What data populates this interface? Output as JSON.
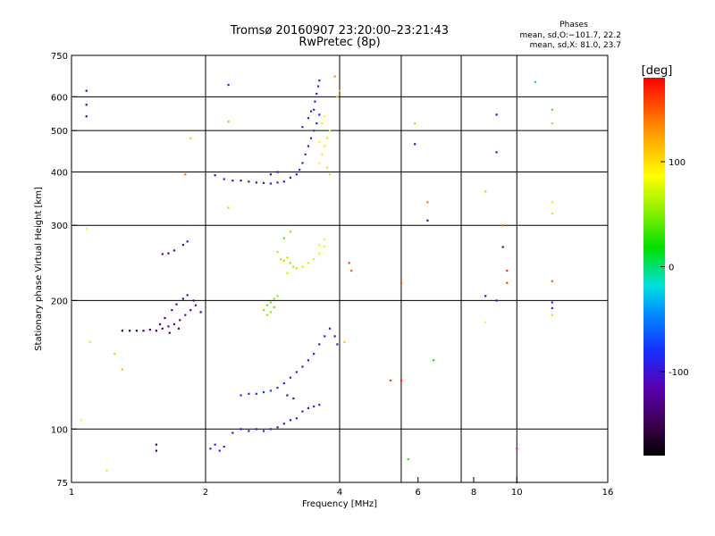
{
  "chart_data": {
    "type": "scatter",
    "title": "Tromsø 20160907 23:20:00–23:21:43",
    "subtitle": "RwPretec (8p)",
    "stats_title": "Phases",
    "stats_o": "mean, sd,O:−101.7, 22.2",
    "stats_x": "mean, sd,X:  81.0, 23.7",
    "xlabel": "Frequency [MHz]",
    "ylabel": "Stationary phase Virtual Height [km]",
    "xscale": "log",
    "yscale": "log",
    "xlim": [
      1,
      16
    ],
    "ylim": [
      75,
      750
    ],
    "xticks": [
      {
        "value": 1,
        "label": "1"
      },
      {
        "value": 2,
        "label": "2"
      },
      {
        "value": 4,
        "label": "4"
      },
      {
        "value": 6,
        "label": "6"
      },
      {
        "value": 8,
        "label": "8"
      },
      {
        "value": 10,
        "label": "10"
      },
      {
        "value": 16,
        "label": "16"
      }
    ],
    "yticks": [
      {
        "value": 75,
        "label": "75"
      },
      {
        "value": 100,
        "label": "100"
      },
      {
        "value": 200,
        "label": "200"
      },
      {
        "value": 300,
        "label": "300"
      },
      {
        "value": 400,
        "label": "400"
      },
      {
        "value": 500,
        "label": "500"
      },
      {
        "value": 600,
        "label": "600"
      },
      {
        "value": 750,
        "label": "750"
      }
    ],
    "xgrid": [
      2,
      4,
      5.5,
      7.5,
      10
    ],
    "ygrid": [
      100,
      200,
      300,
      400,
      500,
      600
    ],
    "colorbar": {
      "label": "[deg]",
      "range": [
        -180,
        180
      ],
      "ticks": [
        {
          "value": 100,
          "label": "100"
        },
        {
          "value": 0,
          "label": "0"
        },
        {
          "value": -100,
          "label": "-100"
        }
      ]
    },
    "series": [
      {
        "mode": "O",
        "points": [
          [
            1.45,
            170,
            -140
          ],
          [
            1.5,
            171,
            -135
          ],
          [
            1.55,
            170,
            -130
          ],
          [
            1.6,
            172,
            -125
          ],
          [
            1.65,
            174,
            -120
          ],
          [
            1.7,
            176,
            -118
          ],
          [
            1.75,
            180,
            -115
          ],
          [
            1.8,
            185,
            -112
          ],
          [
            1.85,
            190,
            -130
          ],
          [
            1.9,
            195,
            -110
          ],
          [
            1.62,
            182,
            -128
          ],
          [
            1.68,
            190,
            -122
          ],
          [
            1.72,
            196,
            -118
          ],
          [
            1.78,
            202,
            -124
          ],
          [
            1.82,
            206,
            -116
          ],
          [
            1.88,
            200,
            -132
          ],
          [
            1.95,
            188,
            -126
          ],
          [
            1.58,
            176,
            -134
          ],
          [
            1.66,
            168,
            -142
          ],
          [
            1.74,
            172,
            -138
          ],
          [
            1.35,
            170,
            -150
          ],
          [
            1.4,
            170,
            -148
          ],
          [
            1.3,
            170,
            -152
          ],
          [
            1.6,
            257,
            -120
          ],
          [
            1.65,
            258,
            -125
          ],
          [
            1.7,
            262,
            -118
          ],
          [
            1.78,
            270,
            -120
          ],
          [
            1.82,
            275,
            -116
          ],
          [
            1.55,
            92,
            -140
          ],
          [
            1.55,
            89,
            -145
          ],
          [
            2.05,
            90,
            -90
          ],
          [
            2.1,
            92,
            -95
          ],
          [
            2.15,
            89,
            -85
          ],
          [
            2.2,
            91,
            -92
          ],
          [
            2.3,
            98,
            -105
          ],
          [
            2.4,
            100,
            -100
          ],
          [
            2.5,
            99,
            -98
          ],
          [
            2.6,
            100,
            -104
          ],
          [
            2.7,
            99,
            -100
          ],
          [
            2.8,
            100,
            -96
          ],
          [
            2.9,
            101,
            -102
          ],
          [
            3.0,
            103,
            -100
          ],
          [
            3.1,
            105,
            -98
          ],
          [
            3.2,
            106,
            -96
          ],
          [
            3.3,
            110,
            -94
          ],
          [
            3.4,
            112,
            -92
          ],
          [
            3.5,
            113,
            -90
          ],
          [
            3.6,
            114,
            -88
          ],
          [
            2.4,
            120,
            -80
          ],
          [
            2.5,
            121,
            -82
          ],
          [
            2.6,
            121,
            -78
          ],
          [
            2.7,
            122,
            -80
          ],
          [
            2.8,
            123,
            -76
          ],
          [
            2.9,
            125,
            -78
          ],
          [
            3.0,
            128,
            -82
          ],
          [
            3.1,
            132,
            -86
          ],
          [
            3.2,
            136,
            -90
          ],
          [
            3.3,
            140,
            -94
          ],
          [
            3.4,
            145,
            -98
          ],
          [
            3.5,
            150,
            -100
          ],
          [
            3.6,
            158,
            -102
          ],
          [
            3.7,
            165,
            -98
          ],
          [
            3.8,
            172,
            -96
          ],
          [
            3.9,
            165,
            -95
          ],
          [
            3.95,
            158,
            -92
          ],
          [
            3.05,
            120,
            -110
          ],
          [
            3.15,
            118,
            -112
          ],
          [
            2.1,
            393,
            -110
          ],
          [
            2.2,
            385,
            -108
          ],
          [
            2.3,
            382,
            -110
          ],
          [
            2.4,
            382,
            -112
          ],
          [
            2.5,
            380,
            -110
          ],
          [
            2.6,
            378,
            -106
          ],
          [
            2.7,
            377,
            -104
          ],
          [
            2.8,
            376,
            -100
          ],
          [
            2.9,
            378,
            -102
          ],
          [
            3.0,
            380,
            -104
          ],
          [
            3.1,
            388,
            -102
          ],
          [
            3.2,
            395,
            -100
          ],
          [
            3.25,
            405,
            -98
          ],
          [
            3.3,
            420,
            -96
          ],
          [
            3.35,
            440,
            -94
          ],
          [
            3.4,
            460,
            -92
          ],
          [
            3.45,
            480,
            -90
          ],
          [
            3.5,
            500,
            -88
          ],
          [
            3.55,
            520,
            -86
          ],
          [
            3.6,
            545,
            -84
          ],
          [
            3.5,
            560,
            -92
          ],
          [
            3.52,
            585,
            -90
          ],
          [
            3.55,
            610,
            -88
          ],
          [
            3.58,
            635,
            -86
          ],
          [
            3.6,
            655,
            -84
          ],
          [
            3.3,
            510,
            -96
          ],
          [
            3.4,
            535,
            -94
          ],
          [
            3.45,
            555,
            -92
          ],
          [
            2.8,
            395,
            -115
          ],
          [
            2.9,
            400,
            -112
          ],
          [
            1.08,
            620,
            -120
          ],
          [
            1.08,
            575,
            -118
          ],
          [
            1.08,
            540,
            -122
          ],
          [
            2.25,
            640,
            -90
          ],
          [
            9.0,
            545,
            -120
          ],
          [
            9.0,
            445,
            -118
          ],
          [
            5.9,
            465,
            -120
          ],
          [
            6.3,
            308,
            -125
          ],
          [
            9.3,
            267,
            -130
          ],
          [
            8.5,
            205,
            -120
          ],
          [
            9.0,
            200,
            -118
          ],
          [
            11.0,
            650,
            -5
          ],
          [
            12.0,
            198,
            -80
          ],
          [
            12.0,
            192,
            -86
          ]
        ]
      },
      {
        "mode": "X",
        "points": [
          [
            2.7,
            190,
            50
          ],
          [
            2.75,
            195,
            45
          ],
          [
            2.8,
            198,
            48
          ],
          [
            2.85,
            202,
            52
          ],
          [
            2.9,
            205,
            55
          ],
          [
            2.8,
            188,
            58
          ],
          [
            2.85,
            193,
            44
          ],
          [
            2.75,
            185,
            54
          ],
          [
            2.95,
            250,
            60
          ],
          [
            3.0,
            248,
            58
          ],
          [
            3.05,
            252,
            62
          ],
          [
            3.1,
            245,
            56
          ],
          [
            3.15,
            240,
            60
          ],
          [
            3.2,
            238,
            64
          ],
          [
            3.3,
            240,
            70
          ],
          [
            3.4,
            245,
            72
          ],
          [
            3.5,
            250,
            74
          ],
          [
            3.6,
            258,
            78
          ],
          [
            3.7,
            268,
            80
          ],
          [
            3.6,
            270,
            82
          ],
          [
            3.7,
            278,
            84
          ],
          [
            3.0,
            280,
            40
          ],
          [
            3.1,
            290,
            50
          ],
          [
            2.9,
            260,
            66
          ],
          [
            3.05,
            232,
            68
          ],
          [
            3.6,
            420,
            90
          ],
          [
            3.65,
            440,
            94
          ],
          [
            3.7,
            460,
            96
          ],
          [
            3.75,
            480,
            98
          ],
          [
            3.8,
            500,
            95
          ],
          [
            3.65,
            520,
            92
          ],
          [
            3.7,
            540,
            90
          ],
          [
            3.75,
            410,
            100
          ],
          [
            3.8,
            395,
            102
          ],
          [
            3.6,
            470,
            88
          ],
          [
            3.95,
            600,
            110
          ],
          [
            4.0,
            620,
            120
          ],
          [
            3.9,
            670,
            130
          ],
          [
            1.08,
            295,
            80
          ],
          [
            1.1,
            160,
            75
          ],
          [
            1.05,
            105,
            90
          ],
          [
            1.2,
            80,
            95
          ],
          [
            1.25,
            150,
            110
          ],
          [
            1.3,
            138,
            115
          ],
          [
            1.85,
            480,
            110
          ],
          [
            1.8,
            395,
            140
          ],
          [
            2.25,
            525,
            120
          ],
          [
            2.25,
            330,
            60
          ],
          [
            4.1,
            160,
            110
          ],
          [
            4.2,
            245,
            160
          ],
          [
            4.25,
            235,
            150
          ],
          [
            5.5,
            220,
            160
          ],
          [
            6.3,
            340,
            140
          ],
          [
            5.7,
            85,
            30
          ],
          [
            6.5,
            145,
            20
          ],
          [
            8.5,
            360,
            110
          ],
          [
            8.5,
            178,
            90
          ],
          [
            9.5,
            235,
            170
          ],
          [
            9.5,
            220,
            160
          ],
          [
            9.3,
            300,
            150
          ],
          [
            10.0,
            90,
            170
          ],
          [
            10.0,
            75,
            150
          ],
          [
            12.0,
            560,
            40
          ],
          [
            12.0,
            520,
            60
          ],
          [
            12.0,
            340,
            80
          ],
          [
            12.0,
            320,
            100
          ],
          [
            12.0,
            222,
            150
          ],
          [
            12.0,
            185,
            110
          ],
          [
            5.5,
            130,
            170
          ],
          [
            5.9,
            520,
            110
          ],
          [
            5.2,
            130,
            160
          ]
        ]
      }
    ]
  }
}
